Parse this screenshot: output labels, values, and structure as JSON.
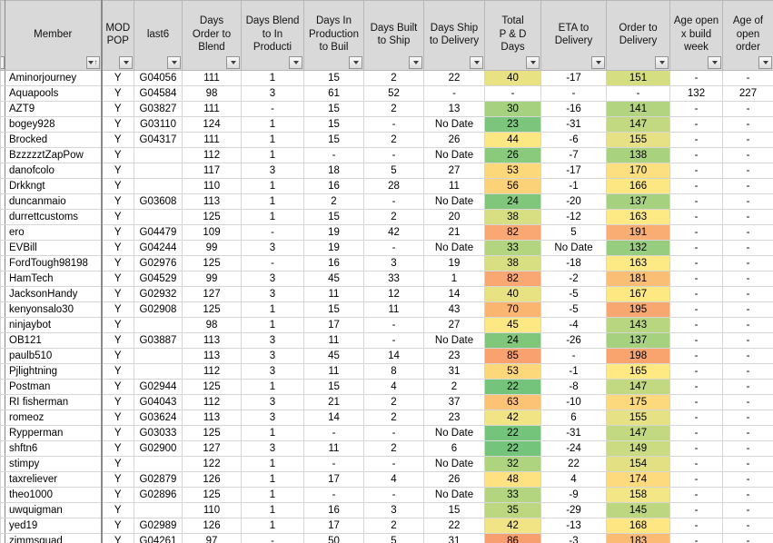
{
  "icons": {
    "sort_ascending_arrow": "↑"
  },
  "colors": {
    "header_bg": "#D9D9D9",
    "grid_line": "#D6D6D6",
    "freeze_line": "#8A8A8A",
    "scale_green": "#63BE7B",
    "scale_yellow": "#FFEB84",
    "scale_red": "#F8696B"
  },
  "table": {
    "columns": [
      {
        "label": ""
      },
      {
        "label": "Member",
        "sorted": "ascending"
      },
      {
        "label": "MOD\nPOP"
      },
      {
        "label": "last6"
      },
      {
        "label": "Days\nOrder to\nBlend"
      },
      {
        "label": "Days Blend\nto  In\nProducti"
      },
      {
        "label": "Days In\nProduction\nto Buil"
      },
      {
        "label": "Days Built\nto Ship"
      },
      {
        "label": "Days Ship\nto Delivery"
      },
      {
        "label": "Total\nP & D\nDays"
      },
      {
        "label": "ETA to\nDelivery"
      },
      {
        "label": "Order to\nDelivery"
      },
      {
        "label": "Age open\nx build\nweek"
      },
      {
        "label": "Age of\nopen\norder"
      }
    ],
    "rows": [
      {
        "cells": [
          "Aminorjourney",
          "Y",
          "G04056",
          "111",
          "1",
          "15",
          "2",
          "22",
          "40",
          "-17",
          "151",
          "-",
          "-"
        ],
        "pd_color": "#E9E283",
        "otd_color": "#D6DE82"
      },
      {
        "cells": [
          "Aquapools",
          "Y",
          "G04584",
          "98",
          "3",
          "61",
          "52",
          "-",
          "-",
          "-",
          "-",
          "132",
          "227"
        ],
        "pd_color": "",
        "otd_color": ""
      },
      {
        "cells": [
          "AZT9",
          "Y",
          "G03827",
          "111",
          "-",
          "15",
          "2",
          "13",
          "30",
          "-16",
          "141",
          "-",
          "-"
        ],
        "pd_color": "#A6D27F",
        "otd_color": "#B2D480"
      },
      {
        "cells": [
          "bogey928",
          "Y",
          "G03110",
          "124",
          "1",
          "15",
          "-",
          "No Date",
          "23",
          "-31",
          "147",
          "-",
          "-"
        ],
        "pd_color": "#7CC57C",
        "otd_color": "#C2D981"
      },
      {
        "cells": [
          "Brocked",
          "Y",
          "G04317",
          "111",
          "1",
          "15",
          "2",
          "26",
          "44",
          "-6",
          "155",
          "-",
          "-"
        ],
        "pd_color": "#FBE883",
        "otd_color": "#E6E184"
      },
      {
        "cells": [
          "BzzzzztZapPow",
          "Y",
          "",
          "112",
          "1",
          "-",
          "-",
          "No Date",
          "26",
          "-7",
          "138",
          "-",
          "-"
        ],
        "pd_color": "#8ACA7D",
        "otd_color": "#A9D27F"
      },
      {
        "cells": [
          "danofcolo",
          "Y",
          "",
          "117",
          "3",
          "18",
          "5",
          "27",
          "53",
          "-17",
          "170",
          "-",
          "-"
        ],
        "pd_color": "#FDD87B",
        "otd_color": "#FCE07F"
      },
      {
        "cells": [
          "Drkkngt",
          "Y",
          "",
          "110",
          "1",
          "16",
          "28",
          "11",
          "56",
          "-1",
          "166",
          "-",
          "-"
        ],
        "pd_color": "#FCD278",
        "otd_color": "#FDE782"
      },
      {
        "cells": [
          "duncanmaio",
          "Y",
          "G03608",
          "113",
          "1",
          "2",
          "-",
          "No Date",
          "24",
          "-20",
          "137",
          "-",
          "-"
        ],
        "pd_color": "#80C77C",
        "otd_color": "#A6D17F"
      },
      {
        "cells": [
          "durrettcustoms",
          "Y",
          "",
          "125",
          "1",
          "15",
          "2",
          "20",
          "38",
          "-12",
          "163",
          "-",
          "-"
        ],
        "pd_color": "#D8DE82",
        "otd_color": "#FEEA84"
      },
      {
        "cells": [
          "ero",
          "Y",
          "G04479",
          "109",
          "-",
          "19",
          "42",
          "21",
          "82",
          "5",
          "191",
          "-",
          "-"
        ],
        "pd_color": "#F9A873",
        "otd_color": "#F9AD72"
      },
      {
        "cells": [
          "EVBill",
          "Y",
          "G04244",
          "99",
          "3",
          "19",
          "-",
          "No Date",
          "33",
          "No Date",
          "132",
          "-",
          "-"
        ],
        "pd_color": "#B3D580",
        "otd_color": "#96CD7E"
      },
      {
        "cells": [
          "FordTough98198",
          "Y",
          "G02976",
          "125",
          "-",
          "16",
          "3",
          "19",
          "38",
          "-18",
          "163",
          "-",
          "-"
        ],
        "pd_color": "#D8DE82",
        "otd_color": "#FEEA84"
      },
      {
        "cells": [
          "HamTech",
          "Y",
          "G04529",
          "99",
          "3",
          "45",
          "33",
          "1",
          "82",
          "-2",
          "181",
          "-",
          "-"
        ],
        "pd_color": "#F9A873",
        "otd_color": "#FABE75"
      },
      {
        "cells": [
          "JacksonHandy",
          "Y",
          "G02932",
          "127",
          "3",
          "11",
          "12",
          "14",
          "40",
          "-5",
          "167",
          "-",
          "-"
        ],
        "pd_color": "#E9E283",
        "otd_color": "#FDE882"
      },
      {
        "cells": [
          "kenyonsalo30",
          "Y",
          "G02908",
          "125",
          "1",
          "15",
          "11",
          "43",
          "70",
          "-5",
          "195",
          "-",
          "-"
        ],
        "pd_color": "#FAB671",
        "otd_color": "#F9A771"
      },
      {
        "cells": [
          "ninjaybot",
          "Y",
          "",
          "98",
          "1",
          "17",
          "-",
          "27",
          "45",
          "-4",
          "143",
          "-",
          "-"
        ],
        "pd_color": "#FEE884",
        "otd_color": "#B8D680"
      },
      {
        "cells": [
          "OB121",
          "Y",
          "G03887",
          "113",
          "3",
          "11",
          "-",
          "No Date",
          "24",
          "-26",
          "137",
          "-",
          "-"
        ],
        "pd_color": "#80C77C",
        "otd_color": "#A6D17F"
      },
      {
        "cells": [
          "paulb510",
          "Y",
          "",
          "113",
          "3",
          "45",
          "14",
          "23",
          "85",
          "-",
          "198",
          "-",
          "-"
        ],
        "pd_color": "#F9A270",
        "otd_color": "#F9A36F"
      },
      {
        "cells": [
          "Pjlightning",
          "Y",
          "",
          "112",
          "3",
          "11",
          "8",
          "31",
          "53",
          "-1",
          "165",
          "-",
          "-"
        ],
        "pd_color": "#FDD87B",
        "otd_color": "#FEE983"
      },
      {
        "cells": [
          "Postman",
          "Y",
          "G02944",
          "125",
          "1",
          "15",
          "4",
          "2",
          "22",
          "-8",
          "147",
          "-",
          "-"
        ],
        "pd_color": "#75C47B",
        "otd_color": "#C2D981"
      },
      {
        "cells": [
          "RI fisherman",
          "Y",
          "G04043",
          "112",
          "3",
          "21",
          "2",
          "37",
          "63",
          "-10",
          "175",
          "-",
          "-"
        ],
        "pd_color": "#FCC375",
        "otd_color": "#FCD97C"
      },
      {
        "cells": [
          "romeoz",
          "Y",
          "G03624",
          "113",
          "3",
          "14",
          "2",
          "23",
          "42",
          "6",
          "155",
          "-",
          "-"
        ],
        "pd_color": "#F1E485",
        "otd_color": "#E6E184"
      },
      {
        "cells": [
          "Rypperman",
          "Y",
          "G03033",
          "125",
          "1",
          "-",
          "-",
          "No Date",
          "22",
          "-31",
          "147",
          "-",
          "-"
        ],
        "pd_color": "#75C47B",
        "otd_color": "#C2D981"
      },
      {
        "cells": [
          "shftn6",
          "Y",
          "G02900",
          "127",
          "3",
          "11",
          "2",
          "6",
          "22",
          "-24",
          "149",
          "-",
          "-"
        ],
        "pd_color": "#75C47B",
        "otd_color": "#CBDB82"
      },
      {
        "cells": [
          "stimpy",
          "Y",
          "",
          "122",
          "1",
          "-",
          "-",
          "No Date",
          "32",
          "22",
          "154",
          "-",
          "-"
        ],
        "pd_color": "#AED480",
        "otd_color": "#E2E083"
      },
      {
        "cells": [
          "taxreliever",
          "Y",
          "G02879",
          "126",
          "1",
          "17",
          "4",
          "26",
          "48",
          "4",
          "174",
          "-",
          "-"
        ],
        "pd_color": "#FEE281",
        "otd_color": "#FCDA7D"
      },
      {
        "cells": [
          "theo1000",
          "Y",
          "G02896",
          "125",
          "1",
          "-",
          "-",
          "No Date",
          "33",
          "-9",
          "158",
          "-",
          "-"
        ],
        "pd_color": "#B3D580",
        "otd_color": "#F2E686"
      },
      {
        "cells": [
          "uwquigman",
          "Y",
          "",
          "110",
          "1",
          "16",
          "3",
          "15",
          "35",
          "-29",
          "145",
          "-",
          "-"
        ],
        "pd_color": "#BDD780",
        "otd_color": "#BDD780"
      },
      {
        "cells": [
          "yed19",
          "Y",
          "G02989",
          "126",
          "1",
          "17",
          "2",
          "22",
          "42",
          "-13",
          "168",
          "-",
          "-"
        ],
        "pd_color": "#F1E485",
        "otd_color": "#FEE682"
      },
      {
        "cells": [
          "zimmsquad",
          "Y",
          "G04261",
          "97",
          "-",
          "50",
          "5",
          "31",
          "86",
          "-3",
          "183",
          "-",
          "-"
        ],
        "pd_color": "#F89F6F",
        "otd_color": "#FBBB73"
      }
    ]
  }
}
